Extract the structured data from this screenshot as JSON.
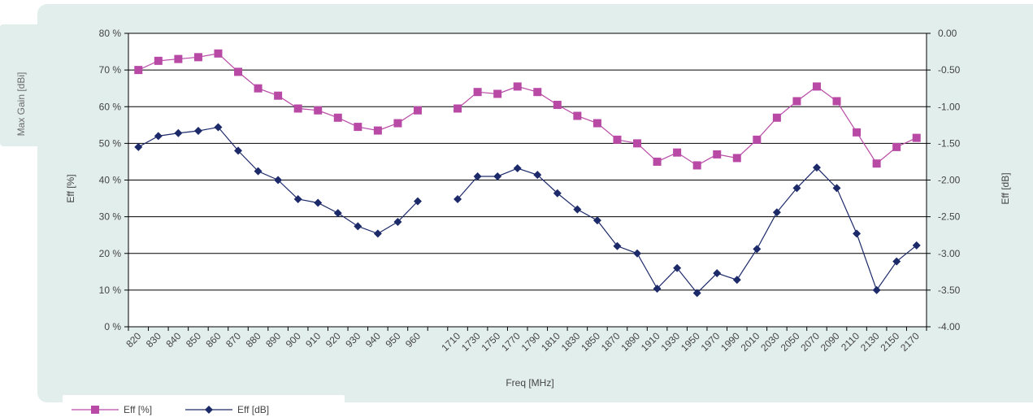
{
  "side_tab": {
    "label": "Max Gain  [dBi]"
  },
  "colors": {
    "series_pct": "#b84aa6",
    "series_db": "#1d2a6a",
    "panel": "#e2eeeb"
  },
  "chart_data": {
    "type": "line",
    "xlabel": "Freq [MHz]",
    "ylabel_left": "Eff [%]",
    "ylabel_right": "Eff [dB]",
    "ylim_left": [
      0,
      80
    ],
    "ylim_right": [
      -4.0,
      0.0
    ],
    "yticks_left": [
      "0 %",
      "10 %",
      "20 %",
      "30 %",
      "40 %",
      "50 %",
      "60 %",
      "70 %",
      "80 %"
    ],
    "yticks_right": [
      "-4.00",
      "-3.50",
      "-3.00",
      "-2.50",
      "-2.00",
      "-1.50",
      "-1.00",
      "-0.50",
      "0.00"
    ],
    "grid": true,
    "legend_position": "bottom-left",
    "categories": [
      "820",
      "830",
      "840",
      "850",
      "860",
      "870",
      "880",
      "890",
      "900",
      "910",
      "920",
      "930",
      "940",
      "950",
      "960",
      "",
      "1710",
      "1730",
      "1750",
      "1770",
      "1790",
      "1810",
      "1830",
      "1850",
      "1870",
      "1890",
      "1910",
      "1930",
      "1950",
      "1970",
      "1990",
      "2010",
      "2030",
      "2050",
      "2070",
      "2090",
      "2110",
      "2130",
      "2150",
      "2170"
    ],
    "series": [
      {
        "name": "Eff [%]",
        "axis": "left",
        "marker": "square",
        "values": [
          70,
          72.5,
          73,
          73.5,
          74.5,
          69.5,
          65,
          63,
          59.5,
          59,
          57,
          54.5,
          53.5,
          55.5,
          59,
          null,
          59.5,
          64,
          63.5,
          65.5,
          64,
          60.5,
          57.5,
          55.5,
          51,
          50,
          45,
          47.5,
          44,
          47,
          46,
          51,
          57,
          61.5,
          65.5,
          61.5,
          53,
          44.5,
          49,
          51.5
        ]
      },
      {
        "name": "Eff [dB]",
        "axis": "right",
        "marker": "diamond",
        "values": [
          -1.55,
          -1.4,
          -1.36,
          -1.33,
          -1.28,
          -1.6,
          -1.88,
          -2.0,
          -2.26,
          -2.31,
          -2.45,
          -2.63,
          -2.73,
          -2.57,
          -2.29,
          null,
          -2.26,
          -1.95,
          -1.95,
          -1.84,
          -1.93,
          -2.18,
          -2.4,
          -2.55,
          -2.9,
          -3.0,
          -3.48,
          -3.2,
          -3.54,
          -3.27,
          -3.36,
          -2.94,
          -2.44,
          -2.11,
          -1.83,
          -2.11,
          -2.73,
          -3.5,
          -3.11,
          -2.89
        ]
      }
    ]
  }
}
